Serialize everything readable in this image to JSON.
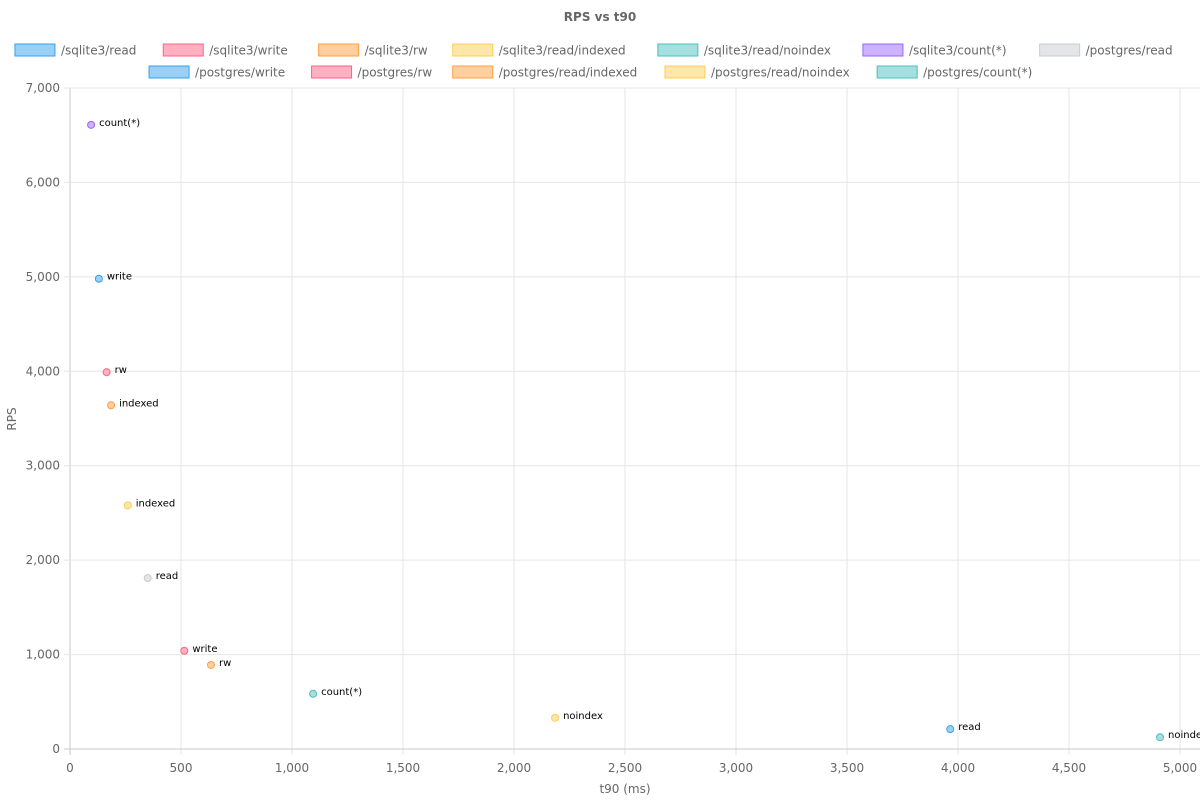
{
  "chart_data": {
    "type": "scatter",
    "title": "RPS vs t90",
    "xlabel": "t90 (ms)",
    "ylabel": "RPS",
    "xlim": [
      0,
      5000
    ],
    "ylim": [
      0,
      7000
    ],
    "x_ticks": [
      0,
      500,
      1000,
      1500,
      2000,
      2500,
      3000,
      3500,
      4000,
      4500,
      5000
    ],
    "y_ticks": [
      0,
      1000,
      2000,
      3000,
      4000,
      5000,
      6000,
      7000
    ],
    "x_tick_labels": [
      "0",
      "500",
      "1,000",
      "1,500",
      "2,000",
      "2,500",
      "3,000",
      "3,500",
      "4,000",
      "4,500",
      "5,000"
    ],
    "y_tick_labels": [
      "0",
      "1,000",
      "2,000",
      "3,000",
      "4,000",
      "5,000",
      "6,000",
      "7,000"
    ],
    "grid": true,
    "legend_position": "top",
    "series": [
      {
        "name": "/sqlite3/read",
        "color": "#36a2eb",
        "fill": "#9ad0f5",
        "points": [
          {
            "x": 3965,
            "y": 210,
            "label": "read"
          }
        ]
      },
      {
        "name": "/sqlite3/write",
        "color": "#ff6384",
        "fill": "#ffb1c1",
        "points": [
          {
            "x": 515,
            "y": 1040,
            "label": "write"
          }
        ]
      },
      {
        "name": "/sqlite3/rw",
        "color": "#ff9f40",
        "fill": "#ffcf9f",
        "points": [
          {
            "x": 635,
            "y": 890,
            "label": "rw"
          }
        ]
      },
      {
        "name": "/sqlite3/read/indexed",
        "color": "#ffcd56",
        "fill": "#ffe6aa",
        "points": [
          {
            "x": 260,
            "y": 2580,
            "label": "indexed"
          }
        ]
      },
      {
        "name": "/sqlite3/read/noindex",
        "color": "#4bc0c0",
        "fill": "#a5dfdf",
        "points": [
          {
            "x": 4910,
            "y": 125,
            "label": "noindex"
          }
        ]
      },
      {
        "name": "/sqlite3/count(*)",
        "color": "#9966ff",
        "fill": "#ccb2ff",
        "points": [
          {
            "x": 95,
            "y": 6610,
            "label": "count(*)"
          }
        ]
      },
      {
        "name": "/postgres/read",
        "color": "#c9cbcf",
        "fill": "#e4e5e7",
        "points": [
          {
            "x": 350,
            "y": 1810,
            "label": "read"
          }
        ]
      },
      {
        "name": "/postgres/write",
        "color": "#36a2eb",
        "fill": "#9ad0f5",
        "points": [
          {
            "x": 130,
            "y": 4980,
            "label": "write"
          }
        ]
      },
      {
        "name": "/postgres/rw",
        "color": "#ff6384",
        "fill": "#ffb1c1",
        "points": [
          {
            "x": 165,
            "y": 3990,
            "label": "rw"
          }
        ]
      },
      {
        "name": "/postgres/read/indexed",
        "color": "#ff9f40",
        "fill": "#ffcf9f",
        "points": [
          {
            "x": 185,
            "y": 3640,
            "label": "indexed"
          }
        ]
      },
      {
        "name": "/postgres/read/noindex",
        "color": "#ffcd56",
        "fill": "#ffe6aa",
        "points": [
          {
            "x": 2185,
            "y": 330,
            "label": "noindex"
          }
        ]
      },
      {
        "name": "/postgres/count(*)",
        "color": "#4bc0c0",
        "fill": "#a5dfdf",
        "points": [
          {
            "x": 1095,
            "y": 585,
            "label": "count(*)"
          }
        ]
      }
    ]
  }
}
